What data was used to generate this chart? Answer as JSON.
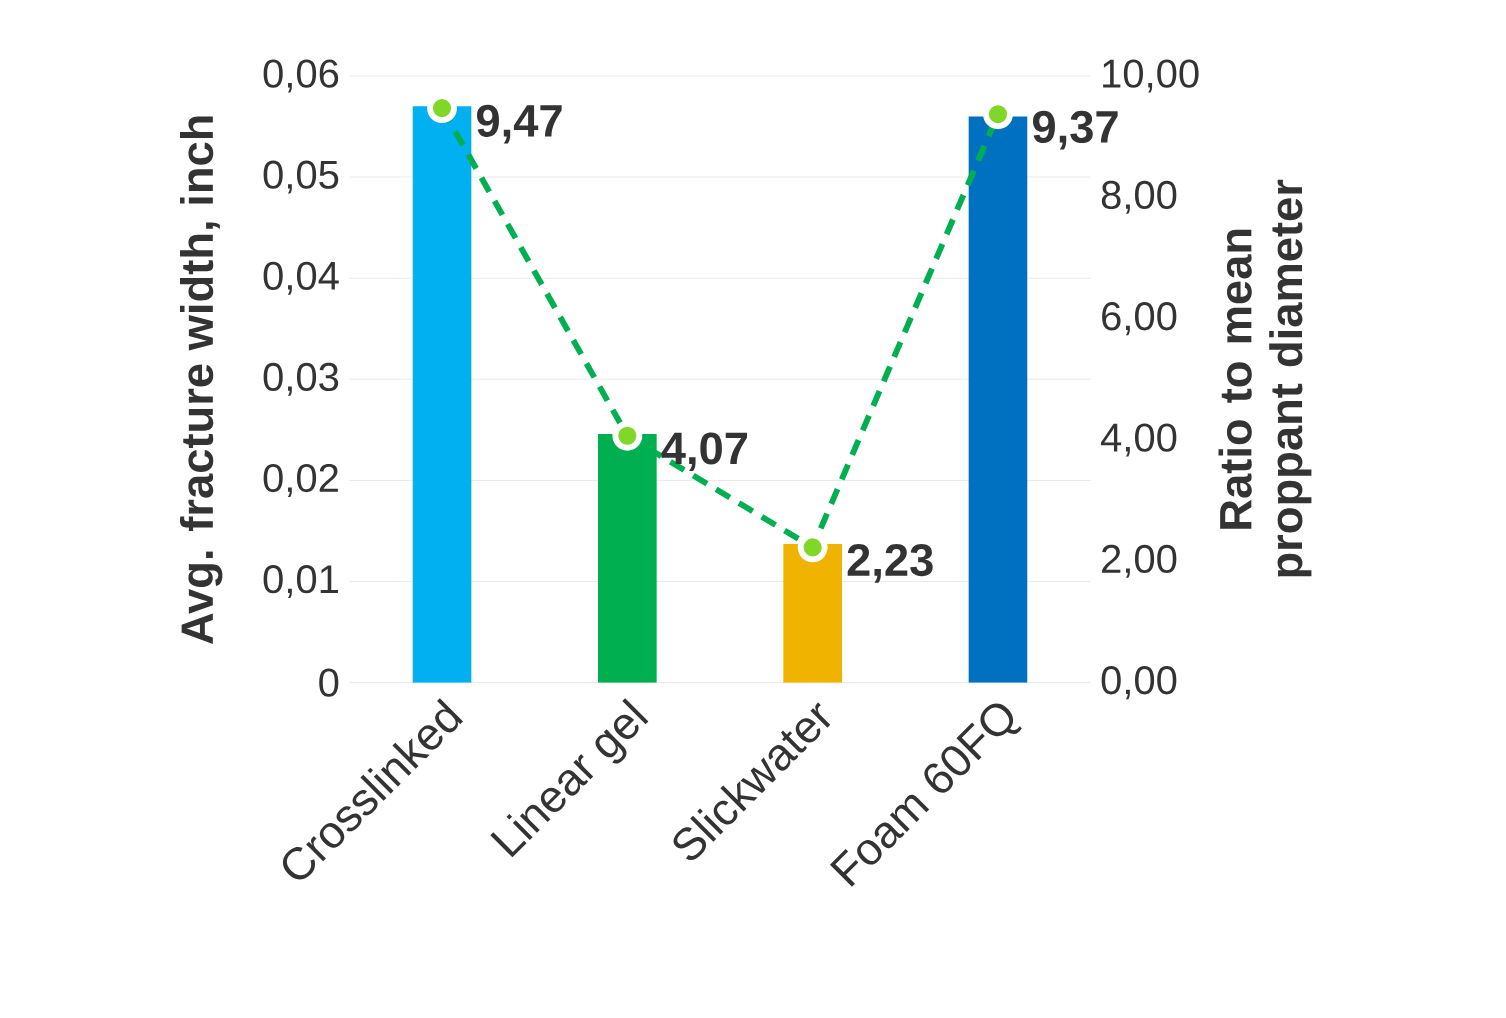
{
  "chart_data": {
    "type": "bar",
    "categories": [
      "Crosslinked",
      "Linear gel",
      "Slickwater",
      "Foam 60FQ"
    ],
    "ylabel": "Avg. fracture width, inch",
    "y2label": "Ratio to mean proppant diameter",
    "series": [
      {
        "colors": [
          "#00b0f0",
          "#00b050",
          "#f0b400",
          "#0070c0"
        ],
        "values": [
          0.057,
          0.0246,
          0.0137,
          0.056
        ]
      },
      {
        "type": "line",
        "axis": "y2",
        "color": "#00b050",
        "values": [
          9.47,
          4.07,
          2.23,
          9.37
        ],
        "value_labels": [
          "9,47",
          "4,07",
          "2,23",
          "9,37"
        ],
        "marker": "circle",
        "line_style": "dashed"
      }
    ],
    "ylim": [
      0,
      0.06
    ],
    "yticks": [
      0,
      {
        "value": 0.01,
        "label": "0,01"
      },
      {
        "value": 0.02,
        "label": "0,02"
      },
      {
        "value": 0.03,
        "label": "0,03"
      },
      {
        "value": 0.04,
        "label": "0,04"
      },
      {
        "value": 0.05,
        "label": "0,05"
      },
      {
        "value": 0.06,
        "label": "0,06"
      }
    ],
    "y2lim": [
      0,
      10
    ],
    "y2ticks": [
      {
        "value": 0,
        "label": "0,00"
      },
      {
        "value": 2,
        "label": "2,00"
      },
      {
        "value": 4,
        "label": "4,00"
      },
      {
        "value": 6,
        "label": "6,00"
      },
      {
        "value": 8,
        "label": "8,00"
      },
      {
        "value": 10,
        "label": "10,00"
      }
    ],
    "grid": "y"
  }
}
